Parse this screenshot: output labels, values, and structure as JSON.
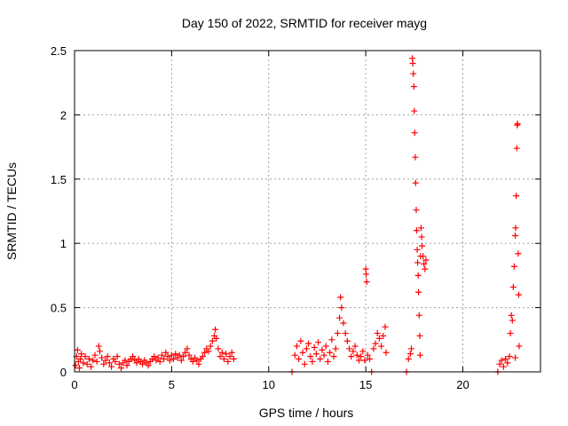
{
  "chart_data": {
    "type": "scatter",
    "title": "Day 150 of 2022, SRMTID for receiver mayg",
    "xlabel": "GPS time / hours",
    "ylabel": "SRMTID / TECUs",
    "xlim": [
      0,
      24
    ],
    "ylim": [
      0,
      2.5
    ],
    "xticks": [
      0,
      5,
      10,
      15,
      20
    ],
    "yticks": [
      0,
      0.5,
      1,
      1.5,
      2,
      2.5
    ],
    "xtick_labels": [
      "0",
      "5",
      "10",
      "15",
      "20"
    ],
    "ytick_labels": [
      "0",
      "0.5",
      "1",
      "1.5",
      "2",
      "2.5"
    ],
    "grid": true,
    "marker": "+",
    "series": [
      {
        "name": "SRMTID",
        "color": "#ff0000",
        "points": [
          [
            0.05,
            0.05
          ],
          [
            0.1,
            0.12
          ],
          [
            0.15,
            0.17
          ],
          [
            0.2,
            0.08
          ],
          [
            0.25,
            0.03
          ],
          [
            0.3,
            0.1
          ],
          [
            0.35,
            0.14
          ],
          [
            0.45,
            0.07
          ],
          [
            0.55,
            0.12
          ],
          [
            0.65,
            0.06
          ],
          [
            0.75,
            0.1
          ],
          [
            0.85,
            0.04
          ],
          [
            0.95,
            0.09
          ],
          [
            1.05,
            0.13
          ],
          [
            1.15,
            0.08
          ],
          [
            1.25,
            0.2
          ],
          [
            1.3,
            0.16
          ],
          [
            1.4,
            0.11
          ],
          [
            1.5,
            0.06
          ],
          [
            1.6,
            0.09
          ],
          [
            1.7,
            0.12
          ],
          [
            1.8,
            0.07
          ],
          [
            1.9,
            0.04
          ],
          [
            2.0,
            0.1
          ],
          [
            2.1,
            0.08
          ],
          [
            2.2,
            0.12
          ],
          [
            2.3,
            0.06
          ],
          [
            2.4,
            0.03
          ],
          [
            2.5,
            0.07
          ],
          [
            2.6,
            0.09
          ],
          [
            2.7,
            0.05
          ],
          [
            2.8,
            0.08
          ],
          [
            2.9,
            0.1
          ],
          [
            3.0,
            0.12
          ],
          [
            3.1,
            0.09
          ],
          [
            3.2,
            0.07
          ],
          [
            3.3,
            0.1
          ],
          [
            3.4,
            0.08
          ],
          [
            3.5,
            0.06
          ],
          [
            3.6,
            0.09
          ],
          [
            3.7,
            0.07
          ],
          [
            3.8,
            0.05
          ],
          [
            3.9,
            0.08
          ],
          [
            4.0,
            0.1
          ],
          [
            4.1,
            0.12
          ],
          [
            4.2,
            0.09
          ],
          [
            4.3,
            0.11
          ],
          [
            4.4,
            0.08
          ],
          [
            4.5,
            0.13
          ],
          [
            4.6,
            0.1
          ],
          [
            4.7,
            0.15
          ],
          [
            4.8,
            0.12
          ],
          [
            4.9,
            0.09
          ],
          [
            5.0,
            0.13
          ],
          [
            5.1,
            0.1
          ],
          [
            5.2,
            0.14
          ],
          [
            5.3,
            0.11
          ],
          [
            5.4,
            0.13
          ],
          [
            5.5,
            0.09
          ],
          [
            5.6,
            0.12
          ],
          [
            5.7,
            0.15
          ],
          [
            5.8,
            0.18
          ],
          [
            5.9,
            0.13
          ],
          [
            6.0,
            0.1
          ],
          [
            6.1,
            0.08
          ],
          [
            6.2,
            0.11
          ],
          [
            6.3,
            0.09
          ],
          [
            6.4,
            0.06
          ],
          [
            6.5,
            0.1
          ],
          [
            6.6,
            0.12
          ],
          [
            6.7,
            0.15
          ],
          [
            6.8,
            0.18
          ],
          [
            6.9,
            0.16
          ],
          [
            7.0,
            0.2
          ],
          [
            7.1,
            0.24
          ],
          [
            7.2,
            0.28
          ],
          [
            7.25,
            0.33
          ],
          [
            7.3,
            0.26
          ],
          [
            7.4,
            0.18
          ],
          [
            7.5,
            0.12
          ],
          [
            7.6,
            0.15
          ],
          [
            7.7,
            0.1
          ],
          [
            7.8,
            0.14
          ],
          [
            7.9,
            0.08
          ],
          [
            8.0,
            0.12
          ],
          [
            8.1,
            0.15
          ],
          [
            8.2,
            0.1
          ],
          [
            11.2,
            0.0
          ],
          [
            11.35,
            0.13
          ],
          [
            11.45,
            0.2
          ],
          [
            11.55,
            0.1
          ],
          [
            11.65,
            0.24
          ],
          [
            11.75,
            0.15
          ],
          [
            11.85,
            0.06
          ],
          [
            11.95,
            0.18
          ],
          [
            12.05,
            0.22
          ],
          [
            12.15,
            0.12
          ],
          [
            12.25,
            0.08
          ],
          [
            12.35,
            0.19
          ],
          [
            12.45,
            0.14
          ],
          [
            12.55,
            0.23
          ],
          [
            12.65,
            0.1
          ],
          [
            12.75,
            0.17
          ],
          [
            12.85,
            0.13
          ],
          [
            12.95,
            0.2
          ],
          [
            13.05,
            0.08
          ],
          [
            13.15,
            0.15
          ],
          [
            13.25,
            0.25
          ],
          [
            13.35,
            0.12
          ],
          [
            13.45,
            0.18
          ],
          [
            13.55,
            0.3
          ],
          [
            13.65,
            0.42
          ],
          [
            13.7,
            0.58
          ],
          [
            13.75,
            0.5
          ],
          [
            13.85,
            0.38
          ],
          [
            13.95,
            0.3
          ],
          [
            14.05,
            0.24
          ],
          [
            14.15,
            0.18
          ],
          [
            14.25,
            0.12
          ],
          [
            14.35,
            0.16
          ],
          [
            14.45,
            0.2
          ],
          [
            14.55,
            0.13
          ],
          [
            14.65,
            0.09
          ],
          [
            14.75,
            0.12
          ],
          [
            14.85,
            0.16
          ],
          [
            14.95,
            0.09
          ],
          [
            15.0,
            0.8
          ],
          [
            15.02,
            0.76
          ],
          [
            15.05,
            0.7
          ],
          [
            15.1,
            0.13
          ],
          [
            15.2,
            0.1
          ],
          [
            15.3,
            0.0
          ],
          [
            15.4,
            0.18
          ],
          [
            15.5,
            0.22
          ],
          [
            15.6,
            0.3
          ],
          [
            15.7,
            0.26
          ],
          [
            15.8,
            0.2
          ],
          [
            15.9,
            0.28
          ],
          [
            16.0,
            0.35
          ],
          [
            16.05,
            0.15
          ],
          [
            17.1,
            0.0
          ],
          [
            17.2,
            0.1
          ],
          [
            17.3,
            0.14
          ],
          [
            17.35,
            0.18
          ],
          [
            17.4,
            2.44
          ],
          [
            17.42,
            2.4
          ],
          [
            17.45,
            2.32
          ],
          [
            17.48,
            2.22
          ],
          [
            17.5,
            2.03
          ],
          [
            17.52,
            1.86
          ],
          [
            17.55,
            1.67
          ],
          [
            17.57,
            1.47
          ],
          [
            17.6,
            1.26
          ],
          [
            17.62,
            1.1
          ],
          [
            17.65,
            0.95
          ],
          [
            17.67,
            0.85
          ],
          [
            17.7,
            0.75
          ],
          [
            17.72,
            0.62
          ],
          [
            17.75,
            0.44
          ],
          [
            17.78,
            0.28
          ],
          [
            17.8,
            0.13
          ],
          [
            17.82,
            0.9
          ],
          [
            17.85,
            1.12
          ],
          [
            17.88,
            1.05
          ],
          [
            17.9,
            0.98
          ],
          [
            17.95,
            0.9
          ],
          [
            18.0,
            0.84
          ],
          [
            18.05,
            0.8
          ],
          [
            18.1,
            0.87
          ],
          [
            21.8,
            0.0
          ],
          [
            21.9,
            0.06
          ],
          [
            22.0,
            0.09
          ],
          [
            22.1,
            0.04
          ],
          [
            22.2,
            0.1
          ],
          [
            22.3,
            0.07
          ],
          [
            22.4,
            0.12
          ],
          [
            22.45,
            0.3
          ],
          [
            22.5,
            0.44
          ],
          [
            22.55,
            0.4
          ],
          [
            22.6,
            0.66
          ],
          [
            22.65,
            0.82
          ],
          [
            22.7,
            1.06
          ],
          [
            22.72,
            1.12
          ],
          [
            22.75,
            1.37
          ],
          [
            22.78,
            1.74
          ],
          [
            22.8,
            1.92
          ],
          [
            22.82,
            1.93
          ],
          [
            22.85,
            0.92
          ],
          [
            22.88,
            0.6
          ],
          [
            22.9,
            0.2
          ],
          [
            22.7,
            0.11
          ]
        ]
      }
    ]
  }
}
